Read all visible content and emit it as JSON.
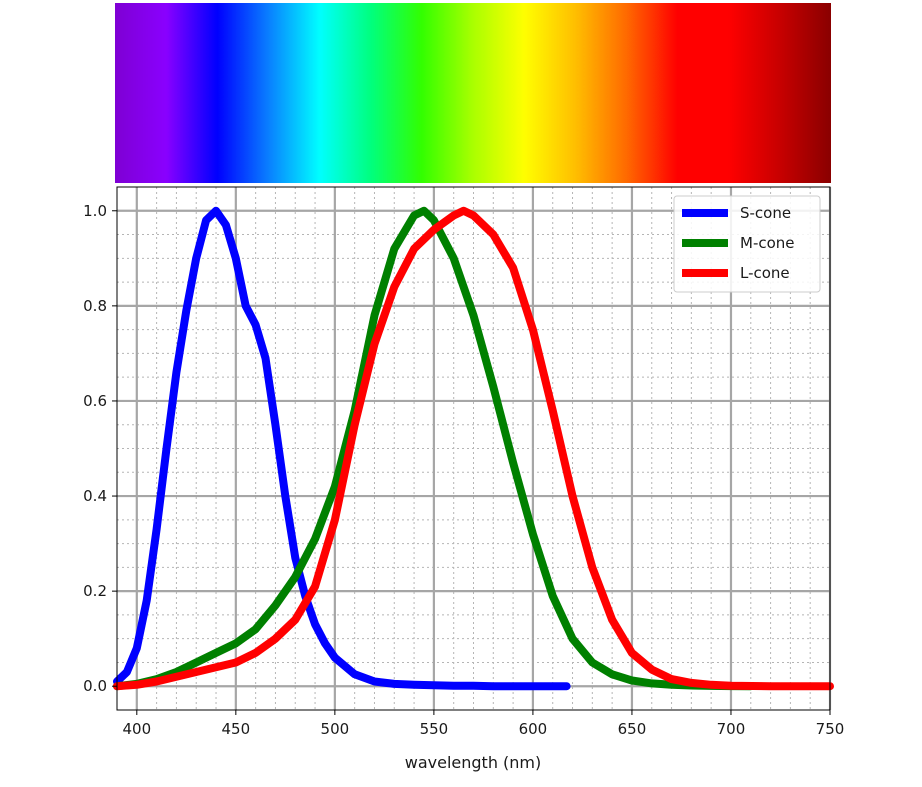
{
  "chart_data": {
    "type": "line",
    "title": "",
    "xlabel": "wavelength (nm)",
    "ylabel": "",
    "xlim": [
      390,
      750
    ],
    "ylim": [
      -0.05,
      1.05
    ],
    "x_ticks": [
      400,
      450,
      500,
      550,
      600,
      650,
      700,
      750
    ],
    "y_ticks": [
      0.0,
      0.2,
      0.4,
      0.6,
      0.8,
      1.0
    ],
    "x_tick_labels": [
      "400",
      "450",
      "500",
      "550",
      "600",
      "650",
      "700",
      "750"
    ],
    "y_tick_labels": [
      "0.0",
      "0.2",
      "0.4",
      "0.6",
      "0.8",
      "1.0"
    ],
    "grid": {
      "major": true,
      "minor": true
    },
    "legend_position": "top-right",
    "spectrum_bar": {
      "range_nm": [
        390,
        750
      ],
      "colors": [
        "#7f00d4",
        "#8a00ff",
        "#0000ff",
        "#0a7fff",
        "#00ffff",
        "#00ff7f",
        "#33ff00",
        "#aaff00",
        "#ffff00",
        "#ffbf00",
        "#ff6a00",
        "#ff0000",
        "#ff0000",
        "#c80000",
        "#8a0000"
      ]
    },
    "series": [
      {
        "name": "S-cone",
        "color": "#0000ff",
        "x": [
          390,
          395,
          400,
          405,
          410,
          415,
          420,
          425,
          430,
          435,
          440,
          445,
          450,
          455,
          460,
          465,
          470,
          475,
          480,
          485,
          490,
          495,
          500,
          510,
          520,
          530,
          540,
          550,
          560,
          570,
          580,
          590,
          600,
          610,
          617
        ],
        "y": [
          0.01,
          0.03,
          0.08,
          0.18,
          0.33,
          0.5,
          0.66,
          0.79,
          0.9,
          0.98,
          1.0,
          0.97,
          0.9,
          0.8,
          0.76,
          0.69,
          0.55,
          0.4,
          0.27,
          0.19,
          0.13,
          0.09,
          0.06,
          0.025,
          0.01,
          0.005,
          0.003,
          0.002,
          0.001,
          0.001,
          0.0,
          0.0,
          0.0,
          0.0,
          0.0
        ]
      },
      {
        "name": "M-cone",
        "color": "#008000",
        "x": [
          390,
          400,
          410,
          420,
          430,
          440,
          450,
          460,
          470,
          480,
          490,
          500,
          510,
          520,
          530,
          540,
          545,
          550,
          560,
          570,
          580,
          590,
          600,
          610,
          620,
          630,
          640,
          650,
          660,
          670,
          680,
          690,
          700,
          710
        ],
        "y": [
          0.0,
          0.005,
          0.015,
          0.03,
          0.05,
          0.07,
          0.09,
          0.12,
          0.17,
          0.23,
          0.31,
          0.42,
          0.58,
          0.78,
          0.92,
          0.99,
          1.0,
          0.98,
          0.9,
          0.78,
          0.63,
          0.47,
          0.32,
          0.19,
          0.1,
          0.05,
          0.025,
          0.012,
          0.006,
          0.003,
          0.0015,
          0.0007,
          0.0003,
          0.0
        ]
      },
      {
        "name": "L-cone",
        "color": "#ff0000",
        "x": [
          390,
          400,
          410,
          420,
          430,
          440,
          450,
          460,
          470,
          480,
          490,
          500,
          510,
          520,
          530,
          540,
          550,
          560,
          565,
          570,
          575,
          580,
          590,
          600,
          610,
          620,
          630,
          640,
          650,
          660,
          670,
          680,
          690,
          700,
          720,
          750
        ],
        "y": [
          0.0,
          0.003,
          0.01,
          0.02,
          0.03,
          0.04,
          0.05,
          0.07,
          0.1,
          0.14,
          0.21,
          0.35,
          0.55,
          0.72,
          0.84,
          0.92,
          0.96,
          0.99,
          1.0,
          0.99,
          0.97,
          0.95,
          0.88,
          0.75,
          0.58,
          0.4,
          0.25,
          0.14,
          0.07,
          0.035,
          0.015,
          0.007,
          0.003,
          0.001,
          0.0,
          0.0
        ]
      }
    ]
  }
}
